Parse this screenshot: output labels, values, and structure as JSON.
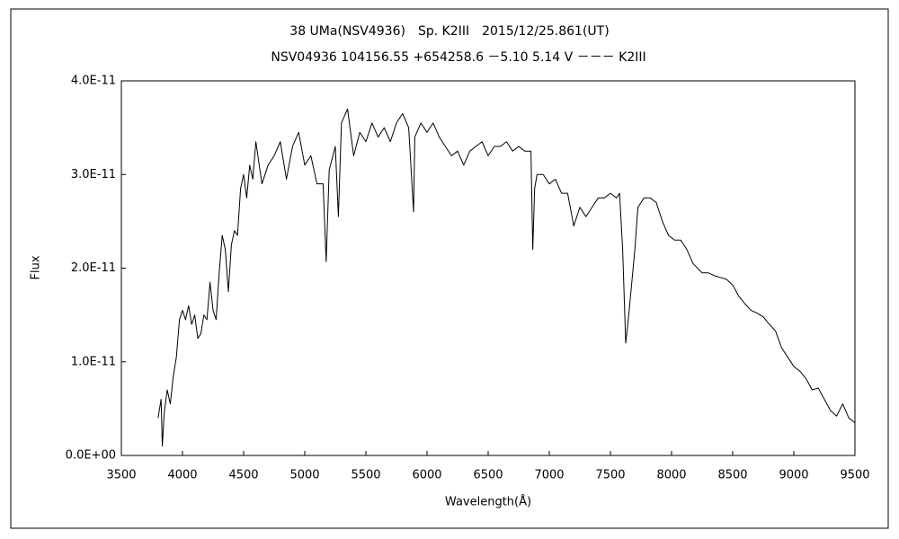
{
  "chart_data": {
    "type": "line",
    "title": "38 UMa(NSV4936)　Sp. K2III　2015/12/25.861(UT)",
    "subtitle": "NSV04936 104156.55 +654258.6 －5.10 5.14 V －－－ K2III",
    "x_label": "Wavelength(Å)",
    "y_label": "Flux",
    "xlim": [
      3500,
      9500
    ],
    "xticks": [
      3500,
      4000,
      4500,
      5000,
      5500,
      6000,
      6500,
      7000,
      7500,
      8000,
      8500,
      9000,
      9500
    ],
    "ylim": [
      0,
      4e-11
    ],
    "yticks": [
      {
        "value": 0,
        "label": "0.0E+00"
      },
      {
        "value": 1e-11,
        "label": "1.0E-11"
      },
      {
        "value": 2e-11,
        "label": "2.0E-11"
      },
      {
        "value": 3e-11,
        "label": "3.0E-11"
      },
      {
        "value": 4e-11,
        "label": "4.0E-11"
      }
    ],
    "grid": false,
    "x": [
      3800,
      3825,
      3835,
      3850,
      3875,
      3900,
      3925,
      3950,
      3975,
      4000,
      4025,
      4050,
      4075,
      4100,
      4125,
      4150,
      4175,
      4200,
      4225,
      4250,
      4275,
      4300,
      4325,
      4350,
      4375,
      4400,
      4425,
      4450,
      4475,
      4500,
      4525,
      4550,
      4575,
      4600,
      4650,
      4700,
      4750,
      4800,
      4850,
      4900,
      4950,
      5000,
      5050,
      5100,
      5150,
      5175,
      5200,
      5250,
      5275,
      5300,
      5350,
      5400,
      5450,
      5500,
      5550,
      5600,
      5650,
      5700,
      5750,
      5800,
      5850,
      5890,
      5900,
      5950,
      6000,
      6050,
      6100,
      6150,
      6200,
      6250,
      6300,
      6350,
      6400,
      6450,
      6500,
      6550,
      6600,
      6650,
      6700,
      6750,
      6800,
      6850,
      6865,
      6880,
      6900,
      6950,
      7000,
      7050,
      7100,
      7150,
      7200,
      7250,
      7300,
      7350,
      7400,
      7450,
      7500,
      7550,
      7575,
      7600,
      7625,
      7650,
      7700,
      7725,
      7775,
      7825,
      7875,
      7925,
      7975,
      8025,
      8075,
      8125,
      8175,
      8250,
      8300,
      8350,
      8400,
      8450,
      8500,
      8550,
      8600,
      8650,
      8700,
      8750,
      8800,
      8850,
      8900,
      8950,
      9000,
      9050,
      9100,
      9150,
      9200,
      9250,
      9300,
      9350,
      9400,
      9450,
      9500
    ],
    "series": [
      {
        "color": "#000000",
        "values": [
          4e-12,
          6e-12,
          1e-12,
          4.5e-12,
          7e-12,
          5.5e-12,
          8.5e-12,
          1.05e-11,
          1.45e-11,
          1.55e-11,
          1.45e-11,
          1.6e-11,
          1.4e-11,
          1.5e-11,
          1.25e-11,
          1.3e-11,
          1.5e-11,
          1.45e-11,
          1.85e-11,
          1.55e-11,
          1.45e-11,
          1.95e-11,
          2.35e-11,
          2.2e-11,
          1.75e-11,
          2.25e-11,
          2.4e-11,
          2.35e-11,
          2.85e-11,
          3e-11,
          2.75e-11,
          3.1e-11,
          2.95e-11,
          3.35e-11,
          2.9e-11,
          3.1e-11,
          3.2e-11,
          3.35e-11,
          2.95e-11,
          3.3e-11,
          3.45e-11,
          3.1e-11,
          3.2e-11,
          2.9e-11,
          2.9e-11,
          2.07e-11,
          3.05e-11,
          3.3e-11,
          2.55e-11,
          3.55e-11,
          3.7e-11,
          3.2e-11,
          3.45e-11,
          3.35e-11,
          3.55e-11,
          3.4e-11,
          3.5e-11,
          3.35e-11,
          3.55e-11,
          3.65e-11,
          3.5e-11,
          2.6e-11,
          3.4e-11,
          3.55e-11,
          3.45e-11,
          3.55e-11,
          3.4e-11,
          3.3e-11,
          3.2e-11,
          3.25e-11,
          3.1e-11,
          3.25e-11,
          3.3e-11,
          3.35e-11,
          3.2e-11,
          3.3e-11,
          3.3e-11,
          3.35e-11,
          3.25e-11,
          3.3e-11,
          3.25e-11,
          3.25e-11,
          2.2e-11,
          2.85e-11,
          3e-11,
          3e-11,
          2.9e-11,
          2.95e-11,
          2.8e-11,
          2.8e-11,
          2.45e-11,
          2.65e-11,
          2.55e-11,
          2.65e-11,
          2.75e-11,
          2.75e-11,
          2.8e-11,
          2.75e-11,
          2.8e-11,
          2.2e-11,
          1.2e-11,
          1.5e-11,
          2.2e-11,
          2.65e-11,
          2.75e-11,
          2.75e-11,
          2.7e-11,
          2.5e-11,
          2.35e-11,
          2.3e-11,
          2.3e-11,
          2.2e-11,
          2.05e-11,
          1.95e-11,
          1.95e-11,
          1.92e-11,
          1.9e-11,
          1.88e-11,
          1.82e-11,
          1.7e-11,
          1.62e-11,
          1.55e-11,
          1.52e-11,
          1.48e-11,
          1.4e-11,
          1.33e-11,
          1.15e-11,
          1.05e-11,
          9.5e-12,
          9e-12,
          8.2e-12,
          7e-12,
          7.2e-12,
          6e-12,
          4.8e-12,
          4.2e-12,
          5.5e-12,
          4e-12,
          3.5e-12
        ]
      }
    ]
  }
}
